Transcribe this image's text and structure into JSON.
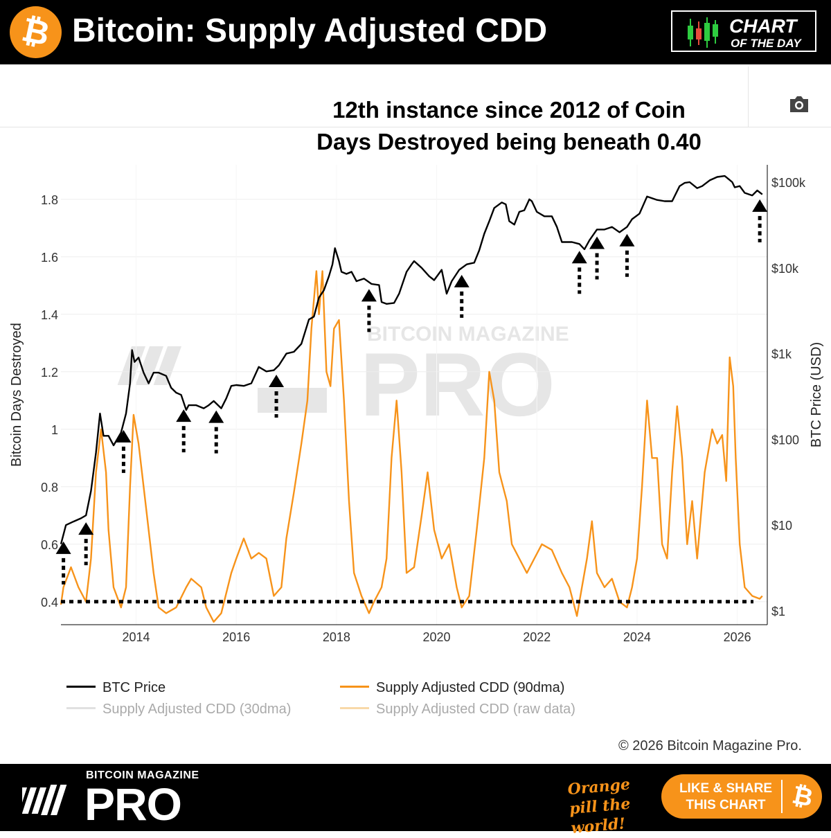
{
  "header": {
    "title": "Bitcoin: Supply Adjusted CDD",
    "logo_glyph": "₿",
    "badge_line1": "CHART",
    "badge_line2": "OF THE DAY"
  },
  "annotation": {
    "line1": "12th instance since 2012 of Coin",
    "line2": "Days Destroyed being beneath 0.40"
  },
  "chart_data": {
    "type": "line",
    "ylabel": "Bitcoin Days Destroyed",
    "y2label": "BTC Price (USD)",
    "ylim": [
      0.32,
      1.92
    ],
    "y_ticks": [
      "0.4",
      "0.6",
      "0.8",
      "1",
      "1.2",
      "1.4",
      "1.6",
      "1.8"
    ],
    "y2_scale": "log",
    "y2_ticks": [
      "$1",
      "$10",
      "$100",
      "$1k",
      "$10k",
      "$100k"
    ],
    "x_ticks": [
      "2014",
      "2016",
      "2018",
      "2020",
      "2022",
      "2024",
      "2026"
    ],
    "xlim": [
      2012.5,
      2026.6
    ],
    "threshold": 0.4,
    "watermark": "BITCOIN MAGAZINE PRO",
    "series": [
      {
        "name": "BTC Price",
        "color": "#000000",
        "axis": "right",
        "points": [
          [
            2012.5,
            6
          ],
          [
            2012.6,
            10
          ],
          [
            2012.75,
            11
          ],
          [
            2012.9,
            12
          ],
          [
            2013.0,
            13
          ],
          [
            2013.1,
            25
          ],
          [
            2013.2,
            70
          ],
          [
            2013.28,
            200
          ],
          [
            2013.35,
            110
          ],
          [
            2013.45,
            110
          ],
          [
            2013.55,
            85
          ],
          [
            2013.7,
            120
          ],
          [
            2013.8,
            200
          ],
          [
            2013.88,
            450
          ],
          [
            2013.92,
            1100
          ],
          [
            2013.97,
            800
          ],
          [
            2014.05,
            900
          ],
          [
            2014.15,
            600
          ],
          [
            2014.25,
            450
          ],
          [
            2014.35,
            600
          ],
          [
            2014.45,
            600
          ],
          [
            2014.6,
            550
          ],
          [
            2014.7,
            400
          ],
          [
            2014.8,
            350
          ],
          [
            2014.9,
            330
          ],
          [
            2015.0,
            220
          ],
          [
            2015.05,
            250
          ],
          [
            2015.2,
            250
          ],
          [
            2015.35,
            230
          ],
          [
            2015.45,
            250
          ],
          [
            2015.55,
            280
          ],
          [
            2015.7,
            230
          ],
          [
            2015.8,
            300
          ],
          [
            2015.9,
            420
          ],
          [
            2016.0,
            430
          ],
          [
            2016.15,
            420
          ],
          [
            2016.3,
            450
          ],
          [
            2016.45,
            700
          ],
          [
            2016.6,
            620
          ],
          [
            2016.75,
            640
          ],
          [
            2016.85,
            730
          ],
          [
            2016.95,
            900
          ],
          [
            2017.0,
            1000
          ],
          [
            2017.15,
            1050
          ],
          [
            2017.3,
            1300
          ],
          [
            2017.45,
            2500
          ],
          [
            2017.55,
            2700
          ],
          [
            2017.65,
            4500
          ],
          [
            2017.75,
            5500
          ],
          [
            2017.85,
            8000
          ],
          [
            2017.92,
            11000
          ],
          [
            2017.97,
            17000
          ],
          [
            2018.05,
            12000
          ],
          [
            2018.1,
            9000
          ],
          [
            2018.2,
            8500
          ],
          [
            2018.3,
            9000
          ],
          [
            2018.4,
            7000
          ],
          [
            2018.55,
            7500
          ],
          [
            2018.7,
            6500
          ],
          [
            2018.85,
            6300
          ],
          [
            2018.9,
            4000
          ],
          [
            2019.0,
            3800
          ],
          [
            2019.15,
            3900
          ],
          [
            2019.25,
            5000
          ],
          [
            2019.4,
            9000
          ],
          [
            2019.5,
            11000
          ],
          [
            2019.55,
            12000
          ],
          [
            2019.7,
            10000
          ],
          [
            2019.85,
            8000
          ],
          [
            2019.95,
            7200
          ],
          [
            2020.1,
            9500
          ],
          [
            2020.2,
            5000
          ],
          [
            2020.3,
            7000
          ],
          [
            2020.45,
            9500
          ],
          [
            2020.6,
            11000
          ],
          [
            2020.75,
            11500
          ],
          [
            2020.85,
            16000
          ],
          [
            2020.95,
            25000
          ],
          [
            2021.05,
            35000
          ],
          [
            2021.15,
            50000
          ],
          [
            2021.3,
            58000
          ],
          [
            2021.38,
            55000
          ],
          [
            2021.45,
            35000
          ],
          [
            2021.55,
            32000
          ],
          [
            2021.65,
            45000
          ],
          [
            2021.75,
            47000
          ],
          [
            2021.85,
            63000
          ],
          [
            2021.9,
            60000
          ],
          [
            2022.0,
            45000
          ],
          [
            2022.15,
            40000
          ],
          [
            2022.3,
            40000
          ],
          [
            2022.4,
            30000
          ],
          [
            2022.5,
            20000
          ],
          [
            2022.7,
            20000
          ],
          [
            2022.85,
            19000
          ],
          [
            2022.95,
            16500
          ],
          [
            2023.05,
            21000
          ],
          [
            2023.2,
            28000
          ],
          [
            2023.35,
            28000
          ],
          [
            2023.5,
            30000
          ],
          [
            2023.65,
            26000
          ],
          [
            2023.8,
            30000
          ],
          [
            2023.9,
            37000
          ],
          [
            2024.05,
            43000
          ],
          [
            2024.2,
            68000
          ],
          [
            2024.4,
            62000
          ],
          [
            2024.55,
            60000
          ],
          [
            2024.7,
            60000
          ],
          [
            2024.85,
            90000
          ],
          [
            2024.95,
            98000
          ],
          [
            2025.05,
            100000
          ],
          [
            2025.2,
            85000
          ],
          [
            2025.3,
            90000
          ],
          [
            2025.45,
            105000
          ],
          [
            2025.6,
            115000
          ],
          [
            2025.75,
            118000
          ],
          [
            2025.8,
            112000
          ],
          [
            2025.9,
            100000
          ],
          [
            2025.95,
            87000
          ],
          [
            2026.05,
            90000
          ],
          [
            2026.15,
            75000
          ],
          [
            2026.3,
            70000
          ],
          [
            2026.4,
            80000
          ],
          [
            2026.5,
            72000
          ]
        ]
      },
      {
        "name": "Supply Adjusted CDD (90dma)",
        "color": "#f7931a",
        "axis": "left",
        "points": [
          [
            2012.5,
            0.39
          ],
          [
            2012.55,
            0.45
          ],
          [
            2012.7,
            0.52
          ],
          [
            2012.85,
            0.45
          ],
          [
            2013.0,
            0.4
          ],
          [
            2013.1,
            0.55
          ],
          [
            2013.2,
            0.85
          ],
          [
            2013.3,
            1.0
          ],
          [
            2013.4,
            0.85
          ],
          [
            2013.45,
            0.65
          ],
          [
            2013.55,
            0.45
          ],
          [
            2013.7,
            0.38
          ],
          [
            2013.8,
            0.45
          ],
          [
            2013.88,
            0.8
          ],
          [
            2013.95,
            1.05
          ],
          [
            2014.05,
            0.95
          ],
          [
            2014.15,
            0.8
          ],
          [
            2014.25,
            0.65
          ],
          [
            2014.35,
            0.5
          ],
          [
            2014.45,
            0.38
          ],
          [
            2014.6,
            0.36
          ],
          [
            2014.8,
            0.38
          ],
          [
            2015.0,
            0.45
          ],
          [
            2015.1,
            0.48
          ],
          [
            2015.3,
            0.45
          ],
          [
            2015.4,
            0.38
          ],
          [
            2015.55,
            0.33
          ],
          [
            2015.7,
            0.36
          ],
          [
            2015.9,
            0.5
          ],
          [
            2016.0,
            0.55
          ],
          [
            2016.15,
            0.62
          ],
          [
            2016.3,
            0.55
          ],
          [
            2016.45,
            0.57
          ],
          [
            2016.6,
            0.55
          ],
          [
            2016.75,
            0.42
          ],
          [
            2016.9,
            0.45
          ],
          [
            2017.0,
            0.62
          ],
          [
            2017.15,
            0.78
          ],
          [
            2017.3,
            0.95
          ],
          [
            2017.42,
            1.1
          ],
          [
            2017.5,
            1.35
          ],
          [
            2017.6,
            1.55
          ],
          [
            2017.65,
            1.4
          ],
          [
            2017.72,
            1.55
          ],
          [
            2017.8,
            1.2
          ],
          [
            2017.88,
            1.15
          ],
          [
            2017.95,
            1.35
          ],
          [
            2018.05,
            1.38
          ],
          [
            2018.15,
            1.1
          ],
          [
            2018.25,
            0.75
          ],
          [
            2018.35,
            0.5
          ],
          [
            2018.5,
            0.42
          ],
          [
            2018.65,
            0.36
          ],
          [
            2018.75,
            0.4
          ],
          [
            2018.9,
            0.45
          ],
          [
            2019.0,
            0.55
          ],
          [
            2019.1,
            0.9
          ],
          [
            2019.2,
            1.1
          ],
          [
            2019.3,
            0.85
          ],
          [
            2019.4,
            0.5
          ],
          [
            2019.55,
            0.52
          ],
          [
            2019.7,
            0.7
          ],
          [
            2019.82,
            0.85
          ],
          [
            2019.95,
            0.65
          ],
          [
            2020.1,
            0.55
          ],
          [
            2020.25,
            0.6
          ],
          [
            2020.4,
            0.45
          ],
          [
            2020.5,
            0.38
          ],
          [
            2020.65,
            0.42
          ],
          [
            2020.8,
            0.65
          ],
          [
            2020.95,
            0.9
          ],
          [
            2021.05,
            1.2
          ],
          [
            2021.15,
            1.1
          ],
          [
            2021.25,
            0.85
          ],
          [
            2021.4,
            0.75
          ],
          [
            2021.5,
            0.6
          ],
          [
            2021.65,
            0.55
          ],
          [
            2021.8,
            0.5
          ],
          [
            2021.95,
            0.55
          ],
          [
            2022.1,
            0.6
          ],
          [
            2022.3,
            0.58
          ],
          [
            2022.5,
            0.5
          ],
          [
            2022.65,
            0.45
          ],
          [
            2022.8,
            0.35
          ],
          [
            2022.9,
            0.45
          ],
          [
            2023.0,
            0.55
          ],
          [
            2023.1,
            0.68
          ],
          [
            2023.2,
            0.5
          ],
          [
            2023.35,
            0.45
          ],
          [
            2023.5,
            0.48
          ],
          [
            2023.65,
            0.4
          ],
          [
            2023.8,
            0.38
          ],
          [
            2023.9,
            0.45
          ],
          [
            2024.0,
            0.55
          ],
          [
            2024.1,
            0.8
          ],
          [
            2024.2,
            1.1
          ],
          [
            2024.3,
            0.9
          ],
          [
            2024.4,
            0.9
          ],
          [
            2024.5,
            0.6
          ],
          [
            2024.6,
            0.55
          ],
          [
            2024.7,
            0.85
          ],
          [
            2024.8,
            1.08
          ],
          [
            2024.9,
            0.9
          ],
          [
            2025.0,
            0.6
          ],
          [
            2025.1,
            0.75
          ],
          [
            2025.2,
            0.55
          ],
          [
            2025.35,
            0.85
          ],
          [
            2025.5,
            1.0
          ],
          [
            2025.6,
            0.95
          ],
          [
            2025.7,
            0.98
          ],
          [
            2025.78,
            0.82
          ],
          [
            2025.85,
            1.25
          ],
          [
            2025.92,
            1.15
          ],
          [
            2025.97,
            0.9
          ],
          [
            2026.05,
            0.6
          ],
          [
            2026.15,
            0.45
          ],
          [
            2026.3,
            0.42
          ],
          [
            2026.45,
            0.41
          ],
          [
            2026.5,
            0.42
          ]
        ]
      },
      {
        "name": "Supply Adjusted CDD (30dma)",
        "color": "#cccccc",
        "axis": "left",
        "visible": false,
        "points": []
      },
      {
        "name": "Supply Adjusted CDD (raw data)",
        "color": "#f5c98a",
        "axis": "left",
        "visible": false,
        "points": []
      }
    ],
    "markers": [
      2012.55,
      2013.0,
      2013.75,
      2014.95,
      2015.6,
      2016.8,
      2018.65,
      2020.5,
      2022.85,
      2023.2,
      2023.8,
      2026.45
    ]
  },
  "footer": {
    "copyright": "© 2026 Bitcoin Magazine Pro.",
    "brand_small": "BITCOIN MAGAZINE",
    "brand_big": "PRO",
    "slogan": "Orange pill the world!",
    "share_label": "LIKE & SHARE THIS CHART",
    "share_glyph": "₿"
  }
}
